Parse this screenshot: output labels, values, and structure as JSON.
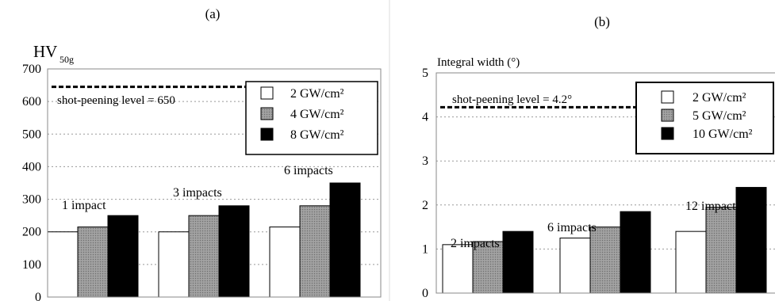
{
  "chart_data": [
    {
      "type": "bar",
      "panel_label": "(a)",
      "ylabel": "HV",
      "ylabel_sub": "50g",
      "ylim": [
        0,
        700
      ],
      "yticks": [
        "0",
        "100",
        "200",
        "300",
        "400",
        "500",
        "600",
        "700"
      ],
      "grid": true,
      "legend": "top-right",
      "categories": [
        "1 impact",
        "3 impacts",
        "6 impacts"
      ],
      "series": [
        {
          "name": "2 GW/cm²",
          "values": [
            200,
            200,
            215
          ],
          "color": "#ffffff"
        },
        {
          "name": "4 GW/cm²",
          "values": [
            215,
            250,
            280
          ],
          "color": "#8c8c8c"
        },
        {
          "name": "8 GW/cm²",
          "values": [
            250,
            280,
            350
          ],
          "color": "#000000"
        }
      ],
      "reference_line": {
        "label": "shot-peening level = 650",
        "value": 645
      }
    },
    {
      "type": "bar",
      "panel_label": "(b)",
      "ylabel": "Integral width (°)",
      "ylim": [
        0,
        5
      ],
      "yticks": [
        "0",
        "1",
        "2",
        "3",
        "4",
        "5"
      ],
      "grid": true,
      "legend": "top-right",
      "categories": [
        "2 impacts",
        "6 impacts",
        "12 impacts"
      ],
      "series": [
        {
          "name": "2 GW/cm²",
          "values": [
            1.1,
            1.25,
            1.4
          ],
          "color": "#ffffff"
        },
        {
          "name": "5 GW/cm²",
          "values": [
            1.17,
            1.5,
            1.95
          ],
          "color": "#8c8c8c"
        },
        {
          "name": "10 GW/cm²",
          "values": [
            1.4,
            1.85,
            2.4
          ],
          "color": "#000000"
        }
      ],
      "reference_line": {
        "label": "shot-peening level = 4.2°",
        "value": 4.22
      }
    }
  ]
}
